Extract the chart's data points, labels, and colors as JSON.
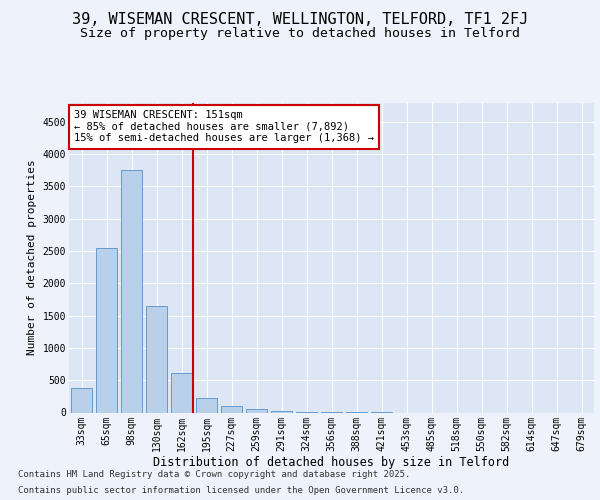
{
  "title1": "39, WISEMAN CRESCENT, WELLINGTON, TELFORD, TF1 2FJ",
  "title2": "Size of property relative to detached houses in Telford",
  "xlabel": "Distribution of detached houses by size in Telford",
  "ylabel": "Number of detached properties",
  "categories": [
    "33sqm",
    "65sqm",
    "98sqm",
    "130sqm",
    "162sqm",
    "195sqm",
    "227sqm",
    "259sqm",
    "291sqm",
    "324sqm",
    "356sqm",
    "388sqm",
    "421sqm",
    "453sqm",
    "485sqm",
    "518sqm",
    "550sqm",
    "582sqm",
    "614sqm",
    "647sqm",
    "679sqm"
  ],
  "values": [
    375,
    2540,
    3760,
    1650,
    615,
    220,
    105,
    60,
    30,
    10,
    5,
    2,
    1,
    0,
    0,
    0,
    0,
    0,
    0,
    0,
    0
  ],
  "bar_color": "#b8d0ea",
  "bar_edge_color": "#6699cc",
  "vline_x": 4.45,
  "vline_color": "#cc0000",
  "annotation_text": "39 WISEMAN CRESCENT: 151sqm\n← 85% of detached houses are smaller (7,892)\n15% of semi-detached houses are larger (1,368) →",
  "annotation_box_color": "#cc0000",
  "footer1": "Contains HM Land Registry data © Crown copyright and database right 2025.",
  "footer2": "Contains public sector information licensed under the Open Government Licence v3.0.",
  "bg_color": "#eef2fa",
  "plot_bg_color": "#dce6f5",
  "grid_color": "#ffffff",
  "ylim": [
    0,
    4800
  ],
  "title1_fontsize": 11,
  "title2_fontsize": 9.5,
  "xlabel_fontsize": 8.5,
  "ylabel_fontsize": 8,
  "tick_fontsize": 7,
  "footer_fontsize": 6.5,
  "ann_fontsize": 7.5
}
